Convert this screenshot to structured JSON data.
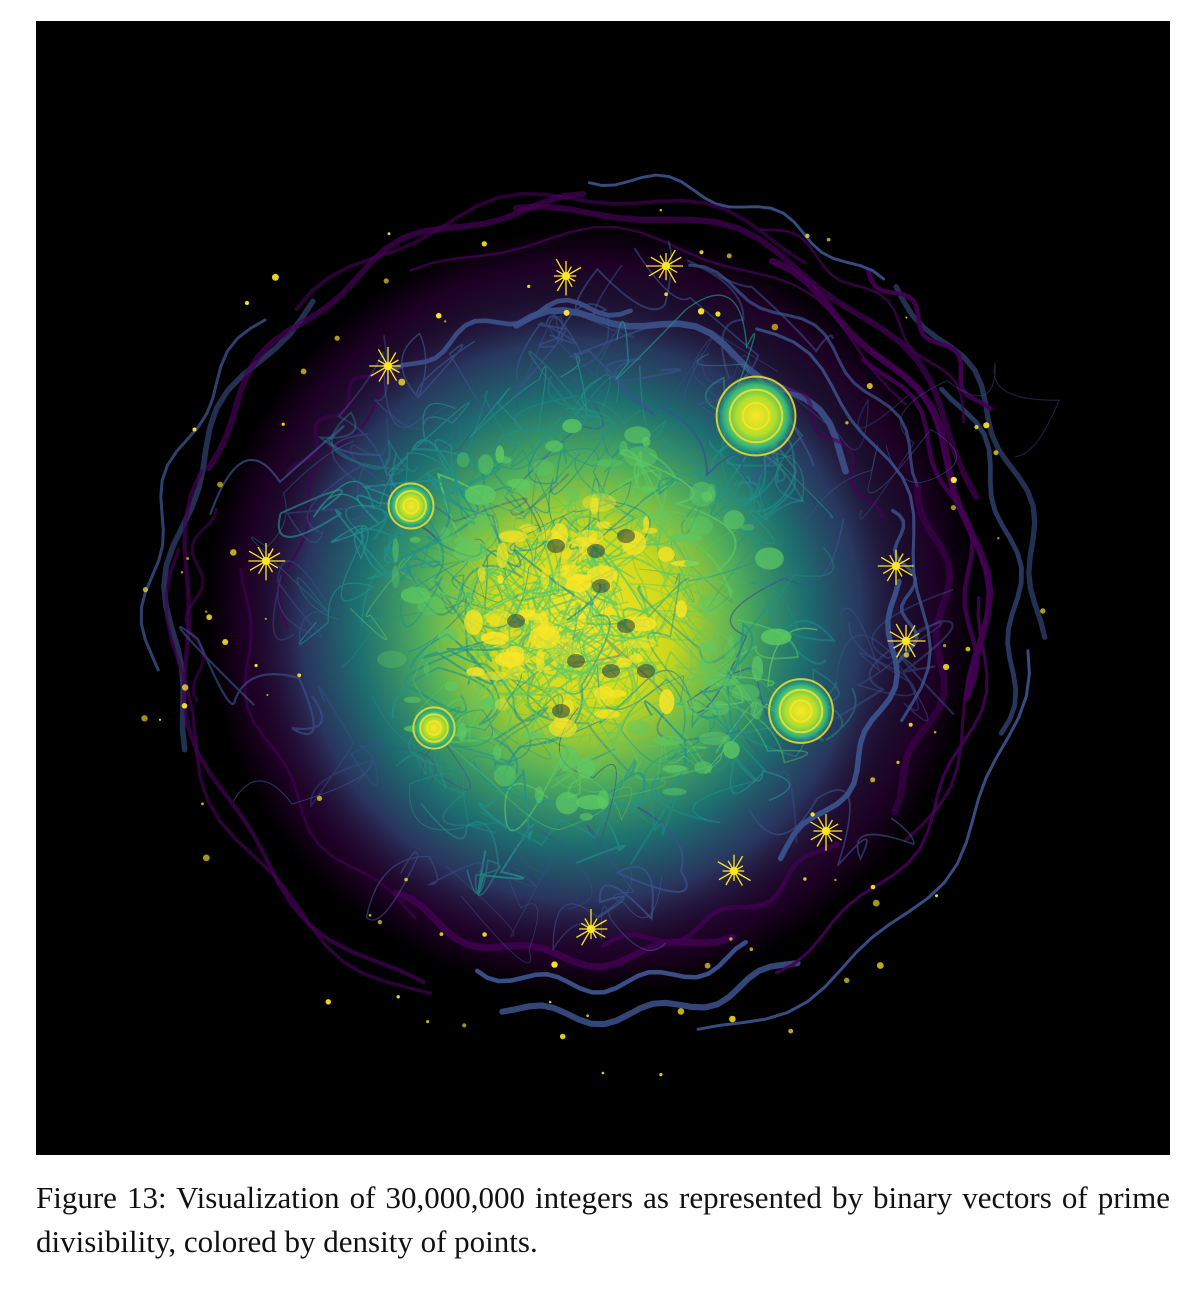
{
  "figure": {
    "caption": "Figure 13: Visualization of 30,000,000 integers as represented by binary vectors of prime divisibility, colored by density of points.",
    "background_color": "#000000",
    "colormap": [
      "#440154",
      "#3b528b",
      "#21918c",
      "#5ec962",
      "#fde725"
    ]
  }
}
